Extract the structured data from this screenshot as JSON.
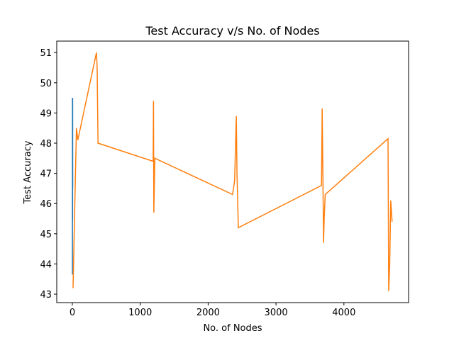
{
  "chart_data": {
    "type": "line",
    "title": "Test Accuracy v/s No. of Nodes",
    "x_label": "No. of Nodes",
    "y_label": "Test Accuracy",
    "xlim": [
      -230,
      4953
    ],
    "ylim": [
      42.72,
      51.38
    ],
    "xticks": [
      0,
      1000,
      2000,
      3000,
      4000
    ],
    "yticks": [
      43,
      44,
      45,
      46,
      47,
      48,
      49,
      50,
      51
    ],
    "series": [
      {
        "color": "#1f77b4",
        "x": [
          1,
          2,
          3,
          4,
          5
        ],
        "values": [
          43.65,
          49.5,
          45.45,
          49.5,
          46.5
        ]
      },
      {
        "color": "#ff7f0e",
        "x": [
          10,
          60,
          80,
          355,
          365,
          375,
          378,
          1190,
          1195,
          1200,
          1215,
          2360,
          2390,
          2415,
          2425,
          2445,
          3670,
          3680,
          3690,
          3700,
          3710,
          3725,
          4650,
          4660,
          4675,
          4690,
          4710
        ],
        "values": [
          43.2,
          48.5,
          48.1,
          51.0,
          50.5,
          48.6,
          48.0,
          47.4,
          49.4,
          45.7,
          47.5,
          46.3,
          46.75,
          48.9,
          47.0,
          45.2,
          46.6,
          49.15,
          47.1,
          44.7,
          45.55,
          46.3,
          48.15,
          43.1,
          44.0,
          46.1,
          45.4
        ]
      }
    ]
  }
}
